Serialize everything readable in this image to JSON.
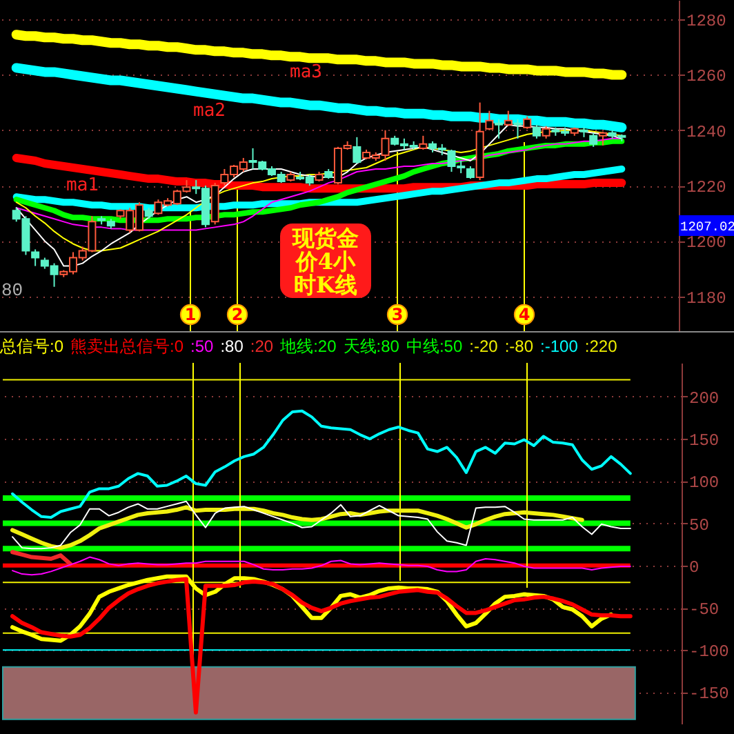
{
  "chart_data": [
    {
      "type": "candlestick",
      "title": "现货金价4小时K线",
      "categories": [
        null,
        null,
        null,
        null,
        null,
        null,
        null,
        null,
        null,
        null,
        null,
        null,
        null,
        null,
        null,
        null,
        null,
        null,
        null,
        null,
        null,
        null,
        null,
        null,
        null,
        null,
        null,
        null,
        null,
        null,
        null,
        null,
        null,
        null,
        null,
        null,
        null,
        null,
        null,
        null,
        null,
        null,
        null,
        null,
        null,
        null,
        null,
        null,
        null,
        null,
        null,
        null,
        null,
        null,
        null,
        null,
        null,
        null,
        null,
        null,
        null,
        null,
        null,
        null,
        null
      ],
      "ohlc": [
        [
          1211,
          1212,
          1207,
          1208
        ],
        [
          1208,
          1209,
          1195,
          1196.5
        ],
        [
          1196,
          1197,
          1191,
          1194
        ],
        [
          1193,
          1194,
          1190,
          1191
        ],
        [
          1191,
          1192,
          1183.5,
          1188
        ],
        [
          1188,
          1189.5,
          1187,
          1189
        ],
        [
          1189,
          1196,
          1188,
          1194
        ],
        [
          1194,
          1198,
          1193,
          1196.5
        ],
        [
          1196.5,
          1209,
          1196,
          1207
        ],
        [
          1208,
          1209,
          1206,
          1207.5
        ],
        [
          1207,
          1208,
          1204.5,
          1205.5
        ],
        [
          1209,
          1211.5,
          1208,
          1211
        ],
        [
          1204,
          1212,
          1203,
          1211
        ],
        [
          1204,
          1214,
          1203.5,
          1213
        ],
        [
          1211,
          1212,
          1208,
          1209
        ],
        [
          1210,
          1215,
          1209.5,
          1214
        ],
        [
          1213,
          1215.5,
          1212.5,
          1214.5
        ],
        [
          1213.5,
          1218.5,
          1213,
          1218
        ],
        [
          1218,
          1222,
          1217.5,
          1219.5
        ],
        [
          1219.5,
          1222,
          1217,
          1219
        ],
        [
          1219,
          1220,
          1205,
          1206
        ],
        [
          1207,
          1221,
          1206,
          1220
        ],
        [
          1221,
          1226,
          1220,
          1224
        ],
        [
          1224,
          1227.5,
          1223,
          1227
        ],
        [
          1226,
          1230,
          1225,
          1228.5
        ],
        [
          1229,
          1233.5,
          1226,
          1228.5
        ],
        [
          1228.5,
          1229,
          1225.5,
          1226
        ],
        [
          1226,
          1227,
          1223.5,
          1224
        ],
        [
          1224,
          1225,
          1221,
          1221.5
        ],
        [
          1222,
          1225,
          1221.5,
          1224
        ],
        [
          1223,
          1225,
          1222,
          1222.5
        ],
        [
          1223,
          1224,
          1220,
          1221
        ],
        [
          1222,
          1225,
          1221.5,
          1224
        ],
        [
          1225,
          1226,
          1222.5,
          1223
        ],
        [
          1221,
          1234,
          1220.5,
          1233.5
        ],
        [
          1233.5,
          1236,
          1233,
          1234.5
        ],
        [
          1234,
          1237.5,
          1228,
          1228.5
        ],
        [
          1230,
          1233,
          1229.5,
          1232
        ],
        [
          1230,
          1232,
          1229,
          1231
        ],
        [
          1231,
          1240,
          1229,
          1237
        ],
        [
          1237,
          1238,
          1234.5,
          1235
        ],
        [
          1235,
          1237,
          1233,
          1234.5
        ],
        [
          1234.5,
          1236,
          1233,
          1234
        ],
        [
          1233.5,
          1238,
          1233,
          1235
        ],
        [
          1235,
          1236,
          1232,
          1233.5
        ],
        [
          1233.5,
          1235,
          1231,
          1233
        ],
        [
          1232.5,
          1233,
          1225,
          1227
        ],
        [
          1227,
          1229,
          1224.5,
          1226.5
        ],
        [
          1226,
          1227,
          1222.5,
          1223
        ],
        [
          1223,
          1250,
          1222,
          1239.5
        ],
        [
          1240.5,
          1247,
          1240,
          1243.5
        ],
        [
          1242.5,
          1244,
          1237,
          1242
        ],
        [
          1242,
          1247,
          1241.5,
          1243.5
        ],
        [
          1242.5,
          1244,
          1237,
          1242
        ],
        [
          1241,
          1245,
          1240.5,
          1244
        ],
        [
          1241,
          1242,
          1237,
          1238
        ],
        [
          1238,
          1241.5,
          1237,
          1240.5
        ],
        [
          1240,
          1241,
          1238,
          1239.5
        ],
        [
          1239.5,
          1241,
          1238,
          1239
        ],
        [
          1239,
          1241,
          1238,
          1240.5
        ],
        [
          1240,
          1241,
          1237.5,
          1239.5
        ],
        [
          1238,
          1239,
          1234,
          1235
        ],
        [
          1238,
          1239.5,
          1234.5,
          1239
        ],
        [
          1239,
          1240,
          1237,
          1238
        ],
        [
          1238,
          1238.5,
          1236,
          1237.5
        ]
      ],
      "colors": [
        "#5cf2c8",
        "#5cf2c8",
        "#5cf2c8",
        "#5cf2c8",
        "#5cf2c8",
        "#ff5a3c",
        "#ff5a3c",
        "#ff5a3c",
        "#ff5a3c",
        "#5cf2c8",
        "#5cf2c8",
        "#ff5a3c",
        "#ff5a3c",
        "#ff5a3c",
        "#5cf2c8",
        "#ff5a3c",
        "#ff5a3c",
        "#ff5a3c",
        "#ff5a3c",
        "#5cf2c8",
        "#5cf2c8",
        "#ff5a3c",
        "#ff5a3c",
        "#ff5a3c",
        "#ff5a3c",
        "#5cf2c8",
        "#5cf2c8",
        "#5cf2c8",
        "#5cf2c8",
        "#ff5a3c",
        "#5cf2c8",
        "#5cf2c8",
        "#ff5a3c",
        "#5cf2c8",
        "#ff5a3c",
        "#ff5a3c",
        "#5cf2c8",
        "#ff5a3c",
        "#ff5a3c",
        "#ff5a3c",
        "#5cf2c8",
        "#5cf2c8",
        "#5cf2c8",
        "#ff5a3c",
        "#5cf2c8",
        "#5cf2c8",
        "#5cf2c8",
        "#5cf2c8",
        "#5cf2c8",
        "#ff5a3c",
        "#ff5a3c",
        "#5cf2c8",
        "#ff5a3c",
        "#5cf2c8",
        "#ff5a3c",
        "#5cf2c8",
        "#ff5a3c",
        "#5cf2c8",
        "#5cf2c8",
        "#ff5a3c",
        "#5cf2c8",
        "#5cf2c8",
        "#ff5a3c",
        "#5cf2c8",
        "#5cf2c8"
      ],
      "series": [
        {
          "type": "line",
          "name": "ma3",
          "color": "#ffff00",
          "values": [
            1274.5,
            1274,
            1274,
            1273.5,
            1273.5,
            1273,
            1273,
            1272.5,
            1272.5,
            1272,
            1271.5,
            1271.5,
            1271,
            1271,
            1270.5,
            1270.5,
            1270,
            1270,
            1269.5,
            1269,
            1269,
            1268.5,
            1268.5,
            1268,
            1268,
            1267.5,
            1267.5,
            1267,
            1267,
            1266.5,
            1266.5,
            1266,
            1266,
            1266,
            1265.5,
            1265.5,
            1265.5,
            1265,
            1265,
            1264.5,
            1264.5,
            1264.5,
            1264,
            1264,
            1264,
            1263.5,
            1263.5,
            1263,
            1263,
            1263,
            1262.5,
            1262.5,
            1262,
            1262,
            1262,
            1261.5,
            1261.5,
            1261.5,
            1261,
            1261,
            1261,
            1260.5,
            1260.5,
            1260,
            1260
          ]
        },
        {
          "type": "line",
          "name": "ma2",
          "color": "#00ffff",
          "values": [
            1262.5,
            1262,
            1261.5,
            1261,
            1261,
            1260.5,
            1260,
            1259.5,
            1259,
            1258.5,
            1258,
            1258,
            1257.5,
            1257,
            1256.5,
            1256,
            1255.5,
            1255,
            1254.5,
            1254,
            1253.5,
            1253,
            1252.5,
            1252,
            1251.5,
            1251.5,
            1251,
            1250.5,
            1250,
            1250,
            1249.5,
            1249,
            1249,
            1248.5,
            1248,
            1248,
            1247.5,
            1247,
            1247,
            1246.5,
            1246.5,
            1246,
            1246,
            1246,
            1245.5,
            1245.5,
            1245,
            1245,
            1245,
            1244.5,
            1244.5,
            1244,
            1244,
            1244,
            1243.5,
            1243.5,
            1243,
            1243,
            1243,
            1242.5,
            1242.5,
            1242,
            1242,
            1241.5,
            1241
          ]
        },
        {
          "type": "line",
          "name": "ma1",
          "color": "#ff0000",
          "values": [
            1230,
            1229.5,
            1229,
            1228,
            1227.5,
            1227,
            1226.5,
            1226,
            1225.5,
            1225,
            1224.5,
            1224,
            1223.5,
            1223,
            1222.5,
            1222.5,
            1222,
            1221.5,
            1221.5,
            1221,
            1221,
            1220.5,
            1220.5,
            1220,
            1220,
            1220,
            1219.5,
            1219.5,
            1219.5,
            1219.5,
            1219.5,
            1219,
            1219,
            1219,
            1219,
            1219,
            1219,
            1219,
            1219,
            1219,
            1219,
            1219,
            1219.5,
            1219.5,
            1219.5,
            1219.5,
            1219.5,
            1219.5,
            1220,
            1220,
            1220,
            1220,
            1220,
            1220,
            1220,
            1220.5,
            1220.5,
            1220.5,
            1220.5,
            1220.5,
            1220.5,
            1221,
            1221,
            1221,
            1221
          ]
        },
        {
          "type": "line",
          "color": "#00ffff",
          "values": [
            1216,
            1215.5,
            1215,
            1215,
            1214.5,
            1214,
            1214,
            1213.5,
            1213,
            1213,
            1212.5,
            1212.5,
            1212.5,
            1212.5,
            1212,
            1212,
            1212,
            1212,
            1212,
            1212,
            1212.5,
            1212.5,
            1212.5,
            1213,
            1213,
            1213,
            1213.5,
            1213.5,
            1213.5,
            1213.5,
            1213.5,
            1214,
            1214,
            1214,
            1214,
            1214,
            1214,
            1214.5,
            1215,
            1215.5,
            1216,
            1216.5,
            1217,
            1217.5,
            1218,
            1218,
            1218.5,
            1219,
            1219.5,
            1220,
            1220.5,
            1221,
            1221,
            1221.5,
            1222,
            1222.5,
            1222.5,
            1223,
            1223.5,
            1224,
            1224,
            1224.5,
            1225,
            1225.5,
            1226
          ]
        },
        {
          "type": "line",
          "color": "#00ff00",
          "values": [
            1215,
            1214,
            1213,
            1212,
            1211,
            1209.5,
            1208.5,
            1208.5,
            1208,
            1208,
            1208,
            1207.5,
            1207.5,
            1207.5,
            1207.5,
            1207.5,
            1208,
            1208,
            1208,
            1208.5,
            1208.5,
            1209,
            1209.5,
            1209.5,
            1210,
            1210.5,
            1210.5,
            1211,
            1211.5,
            1212,
            1213,
            1213.5,
            1214,
            1215,
            1216,
            1217.5,
            1218.5,
            1219.5,
            1220.5,
            1221.5,
            1222.5,
            1223.5,
            1225,
            1226,
            1227,
            1228,
            1228.5,
            1229.5,
            1230,
            1230.5,
            1231,
            1231.5,
            1232.5,
            1233,
            1233.5,
            1234,
            1234.5,
            1234.5,
            1235,
            1235,
            1235,
            1235.5,
            1235.5,
            1236,
            1236
          ]
        },
        {
          "type": "line",
          "color": "#ff00ff",
          "values": [
            1212,
            1211,
            1210,
            1209,
            1208,
            1207,
            1206,
            1205.5,
            1205,
            1205,
            1204.5,
            1204.5,
            1204,
            1204,
            1204,
            1204,
            1204,
            1204,
            1204,
            1204,
            1204.5,
            1205,
            1205.5,
            1206,
            1207,
            1209,
            1211.5,
            1214,
            1215,
            1216,
            1217,
            1218,
            1219.5,
            1221,
            1222,
            1223.5,
            1225,
            1225.5,
            1226,
            1226,
            1226.5,
            1227,
            1227,
            1227.5,
            1228,
            1228,
            1228.5,
            1229,
            1229.5,
            1230,
            1231,
            1231.5,
            1232,
            1232.5,
            1233,
            1234,
            1234.5,
            1235,
            1235,
            1235.5,
            1236,
            1236,
            1236.5,
            1237,
            1237
          ]
        },
        {
          "type": "line",
          "color": "#ffff00",
          "values": [
            1214,
            1212,
            1209,
            1206.5,
            1203.5,
            1201,
            1199,
            1197.5,
            1196.5,
            1196.5,
            1197,
            1197.5,
            1199,
            1200.5,
            1202,
            1203.5,
            1205.5,
            1207.5,
            1209.5,
            1212,
            1214.5,
            1216.5,
            1218,
            1219,
            1220,
            1221,
            1221.5,
            1222.5,
            1223,
            1223.5,
            1223.5,
            1224,
            1224,
            1224.5,
            1225,
            1225.5,
            1226,
            1226.5,
            1228,
            1229.5,
            1231,
            1232,
            1233,
            1234,
            1233.5,
            1233,
            1232.5,
            1232,
            1232.5,
            1233.5,
            1234.5,
            1235.5,
            1236.5,
            1237.5,
            1238.5,
            1239,
            1239.5,
            1239.5,
            1240,
            1240,
            1240,
            1239.5,
            1239,
            1238.5,
            1238
          ]
        },
        {
          "type": "line",
          "color": "#ffffff",
          "values": [
            1212,
            1208,
            1204,
            1200,
            1197,
            1191,
            1191,
            1192,
            1194.5,
            1196.5,
            1199,
            1201,
            1203,
            1206,
            1208.5,
            1211,
            1213,
            1215,
            1216,
            1214,
            1215,
            1216.5,
            1219.5,
            1222.5,
            1225,
            1226,
            1226,
            1226,
            1226,
            1225,
            1224,
            1223.5,
            1223,
            1223,
            1223,
            1225,
            1228,
            1230,
            1231,
            1232,
            1232.5,
            1233,
            1233.5,
            1234,
            1233,
            1232,
            1231,
            1230,
            1229,
            1231.5,
            1235,
            1238.5,
            1242,
            1241.5,
            1241.5,
            1241,
            1241,
            1240.5,
            1240.5,
            1240,
            1239.5,
            1239,
            1238.5,
            1238,
            1237
          ]
        }
      ],
      "ylim": [
        1167.5,
        1287
      ],
      "yticks": [
        1180,
        1200,
        1220,
        1240,
        1260,
        1280
      ],
      "grid": true,
      "tick_labels": "y",
      "annotations": [
        "80",
        "1207.02",
        "1",
        "2",
        "3",
        "4"
      ]
    },
    {
      "type": "line",
      "categories": [
        null,
        null,
        null,
        null,
        null,
        null,
        null,
        null,
        null,
        null,
        null,
        null,
        null,
        null,
        null,
        null,
        null,
        null,
        null,
        null,
        null,
        null,
        null,
        null,
        null,
        null,
        null,
        null,
        null,
        null,
        null,
        null,
        null,
        null,
        null,
        null,
        null,
        null,
        null,
        null,
        null,
        null,
        null,
        null,
        null,
        null,
        null,
        null,
        null,
        null,
        null,
        null,
        null,
        null,
        null,
        null,
        null,
        null,
        null,
        null,
        null,
        null,
        null,
        null,
        null
      ],
      "series": [
        {
          "name": "总信号:0",
          "color": "#ffff00",
          "values": [
            -73,
            -78,
            -82,
            -87,
            -88,
            -89,
            -82,
            -72,
            -57,
            -37,
            -31,
            -27,
            -23,
            -20,
            -17,
            -15,
            -13,
            -13,
            -13,
            -27,
            -35,
            -31,
            -22,
            -15,
            -15,
            -16,
            -19,
            -23,
            -28,
            -36,
            -49,
            -62,
            -62,
            -50,
            -36,
            -34,
            -38,
            -35,
            -30,
            -27,
            -26,
            -27,
            -27,
            -28,
            -31,
            -42,
            -58,
            -72,
            -68,
            -57,
            -45,
            -37,
            -36,
            -34,
            -35,
            -36,
            -40,
            -49,
            -52,
            -60,
            -72,
            -63,
            -58,
            null,
            null
          ]
        },
        {
          "name": "熊卖出总信号:0",
          "color": "#ff0000",
          "values": [
            -60,
            -68,
            -73,
            -79,
            -81,
            -83,
            -84,
            -82,
            -74,
            -63,
            -50,
            -41,
            -33,
            -28,
            -24,
            -21,
            -19,
            -17,
            -16,
            -174,
            -24,
            -24,
            -24,
            -23,
            -20,
            -19,
            -20,
            -22,
            -28,
            -35,
            -44,
            -50,
            -54,
            -50,
            -45,
            -42,
            -40,
            -38,
            -37,
            -34,
            -31,
            -30,
            -29,
            -31,
            -32,
            -39,
            -48,
            -56,
            -56,
            -53,
            -49,
            -45,
            -41,
            -40,
            -38,
            -37,
            -39,
            -42,
            -46,
            -52,
            -58,
            -59,
            -59,
            -60,
            -60
          ]
        },
        {
          "name": ":50",
          "color": "#ff00ff",
          "values": [
            -6,
            -10,
            -11,
            -10,
            -7,
            -3,
            1,
            5,
            10,
            7,
            2,
            0,
            2,
            3,
            2,
            1,
            1,
            2,
            3,
            3,
            5,
            5,
            5,
            5,
            5,
            1,
            -4,
            -5,
            -5,
            -4,
            -4,
            -3,
            0,
            5,
            6,
            2,
            1,
            2,
            3,
            2,
            1,
            0,
            0,
            -1,
            -5,
            -7,
            -7,
            -5,
            5,
            8,
            7,
            5,
            3,
            -1,
            -3,
            -3,
            -3,
            -3,
            -3,
            -3,
            -5,
            -3,
            -2,
            -1,
            -1
          ]
        },
        {
          "name": ":80",
          "color": "#ffffff",
          "values": [
            34,
            21,
            20,
            20,
            21,
            24,
            39,
            48,
            67,
            67,
            59,
            63,
            69,
            73,
            67,
            67,
            70,
            73,
            76,
            60,
            45,
            62,
            68,
            69,
            70,
            66,
            62,
            58,
            54,
            50,
            45,
            46,
            54,
            62,
            72,
            58,
            59,
            65,
            71,
            65,
            59,
            58,
            57,
            55,
            40,
            29,
            27,
            24,
            68,
            69,
            69,
            70,
            63,
            55,
            54,
            54,
            54,
            54,
            57,
            46,
            37,
            49,
            46,
            44,
            44
          ]
        },
        {
          "name": ":20",
          "color": "#f02a2a",
          "values": [
            16,
            13,
            10,
            9,
            8,
            12,
            2,
            null,
            null,
            null,
            null,
            null,
            null,
            null,
            null,
            null,
            null,
            null,
            null,
            null,
            null,
            null,
            null,
            null,
            null,
            null,
            null,
            null,
            null,
            null,
            null,
            null,
            null,
            null,
            null,
            null,
            null,
            null,
            null,
            null,
            null,
            null,
            null,
            null,
            null,
            null,
            null,
            null,
            null,
            null,
            null,
            null,
            null,
            null,
            null,
            null,
            null,
            null,
            null,
            null,
            null,
            null,
            null,
            null,
            null
          ]
        },
        {
          "color": "#00ffff",
          "values": [
            85,
            75,
            66,
            58,
            57,
            64,
            67,
            70,
            87,
            91,
            91,
            94,
            103,
            109,
            106,
            94,
            95,
            100,
            106,
            97,
            95,
            111,
            117,
            124,
            129,
            132,
            140,
            155,
            172,
            182,
            183,
            176,
            165,
            163,
            162,
            161,
            155,
            150,
            156,
            161,
            164,
            160,
            157,
            138,
            135,
            140,
            128,
            110,
            135,
            140,
            133,
            145,
            144,
            149,
            142,
            153,
            146,
            145,
            143,
            125,
            114,
            118,
            129,
            120,
            109
          ]
        },
        {
          "color": "#f0f010",
          "values": [
            42,
            37,
            32,
            27,
            23,
            21,
            24,
            29,
            36,
            44,
            48,
            52,
            56,
            60,
            62,
            63,
            64,
            66,
            69,
            65,
            66,
            66,
            66,
            67,
            67,
            67,
            65,
            62,
            60,
            57,
            55,
            54,
            55,
            58,
            61,
            62,
            60,
            62,
            64,
            65,
            65,
            65,
            65,
            62,
            59,
            55,
            50,
            45,
            49,
            54,
            58,
            61,
            62,
            63,
            62,
            61,
            60,
            58,
            56,
            54,
            null,
            null,
            null,
            null,
            null
          ]
        }
      ],
      "ylim": [
        -188,
        240
      ],
      "yticks": [
        -150,
        -100,
        -50,
        0,
        50,
        100,
        150,
        200
      ],
      "grid": true,
      "tick_labels": "y",
      "ref_lines": [
        {
          "axis": "y",
          "value": 20,
          "label": "地线:20",
          "color": "#00ff00"
        },
        {
          "axis": "y",
          "value": 80,
          "label": "天线:80",
          "color": "#00ff00"
        },
        {
          "axis": "y",
          "value": 50,
          "label": "中线:50",
          "color": "#00ff00"
        },
        {
          "axis": "y",
          "value": -20,
          "label": ":-20",
          "color": "#f0f000"
        },
        {
          "axis": "y",
          "value": -80,
          "label": ":-80",
          "color": "#f0f000"
        },
        {
          "axis": "y",
          "value": -100,
          "label": ":-100",
          "color": "#00ffff"
        },
        {
          "axis": "y",
          "value": 220,
          "label": ":220",
          "color": "#f0f000"
        },
        {
          "axis": "y",
          "value": 0,
          "color": "#ff0000"
        }
      ],
      "bands": [
        {
          "axis": "y",
          "from": -182,
          "to": -120,
          "color": "#996666"
        }
      ]
    }
  ]
}
